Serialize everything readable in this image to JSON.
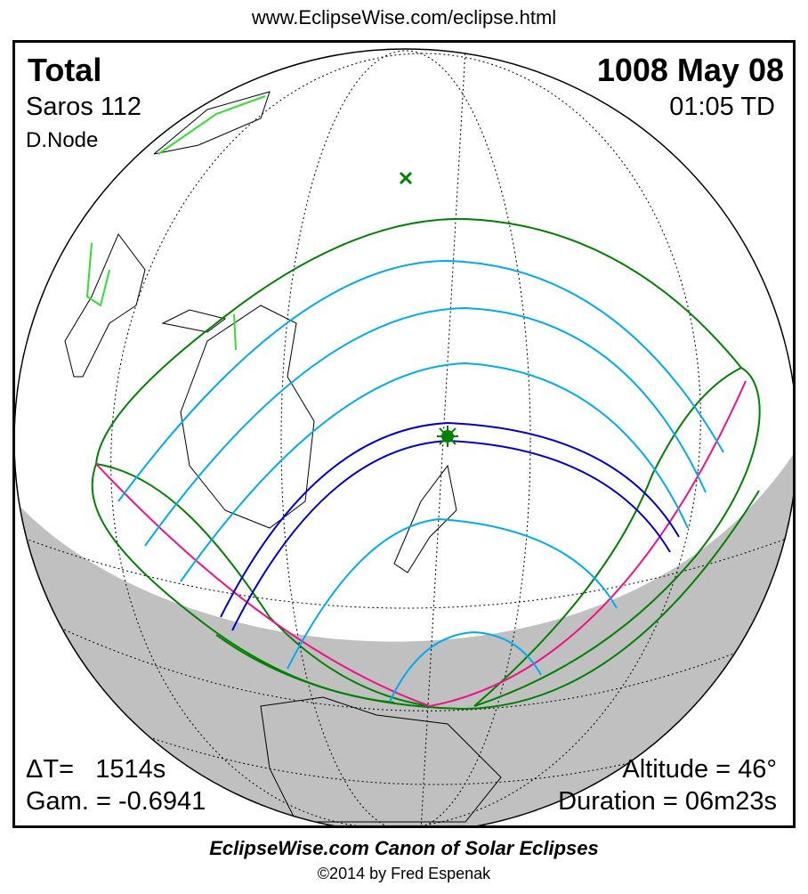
{
  "header": {
    "url": "www.EclipseWise.com/eclipse.html"
  },
  "eclipse": {
    "type": "Total",
    "date": "1008 May 08",
    "saros": "Saros 112",
    "time": "01:05 TD",
    "node": "D.Node",
    "delta_t": "ΔT=   1514s",
    "gamma": "Gam. = -0.6941",
    "altitude": "Altitude = 46°",
    "duration": "Duration = 06m23s"
  },
  "colors": {
    "penumbral_limits": "#008000",
    "magnitude_lines": "#00aaee",
    "central_path": "#0000cc",
    "rise_set": "#ee1188",
    "night": "#c0c0c0"
  },
  "markers": {
    "subsolar": "x-mark",
    "greatest_eclipse": "star-mark"
  },
  "footer": {
    "title": "EclipseWise.com Canon of Solar Eclipses",
    "copyright": "©2014 by Fred Espenak"
  }
}
